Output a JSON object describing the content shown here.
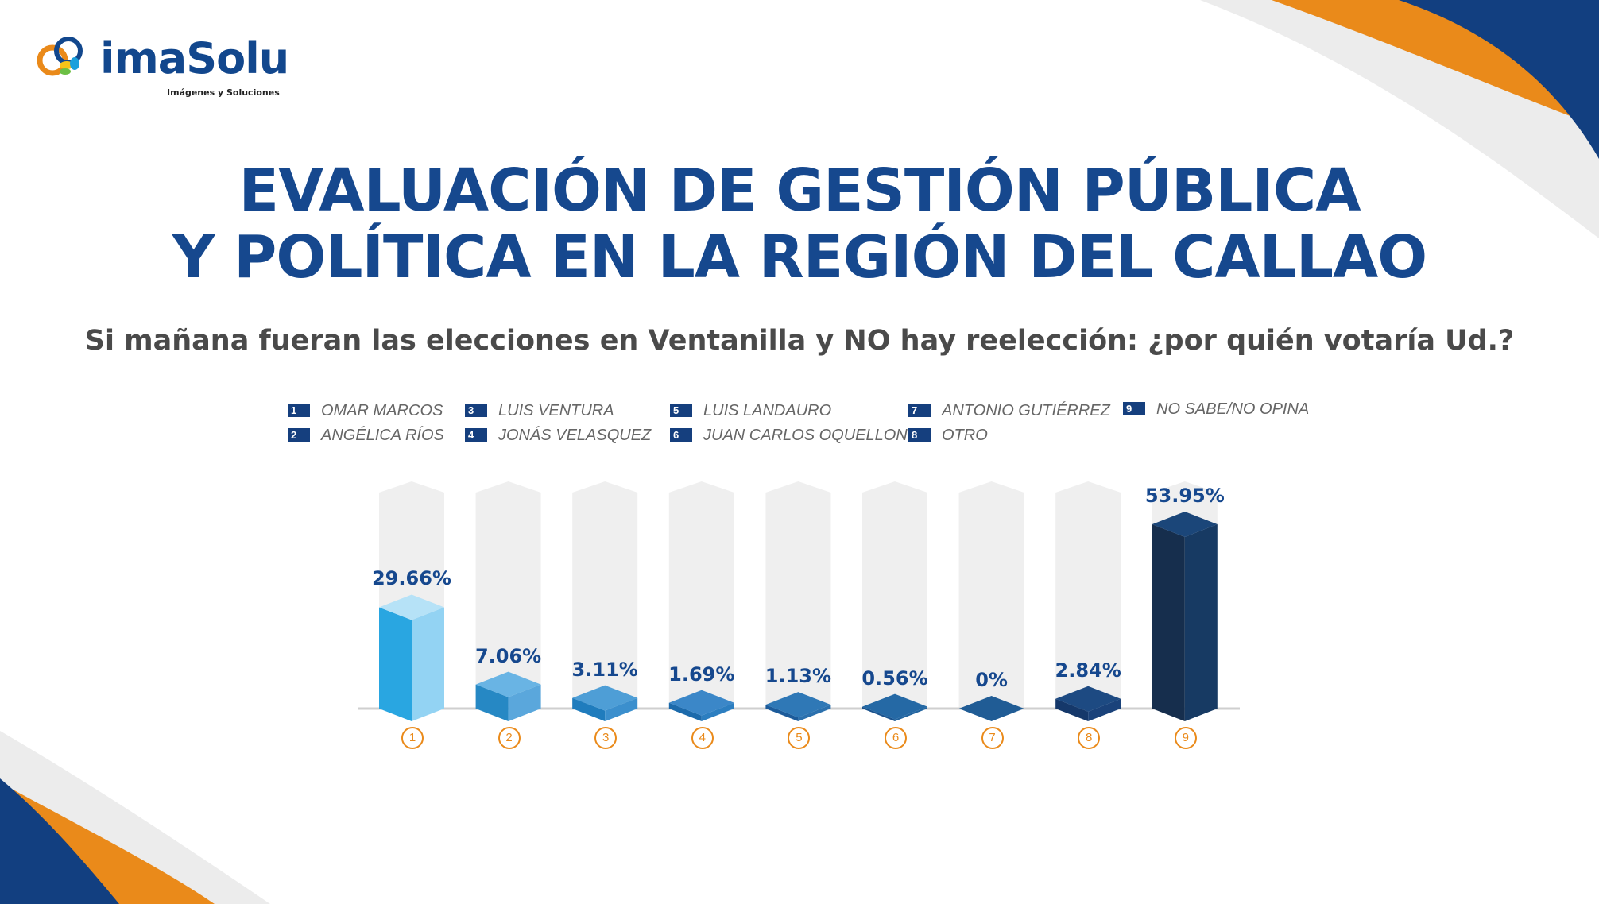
{
  "logo": {
    "wordmark": "imaSolu",
    "tagline": "Imágenes y Soluciones"
  },
  "title_line1": "EVALUACIÓN DE GESTIÓN PÚBLICA",
  "title_line2": "Y POLÍTICA EN LA REGIÓN DEL CALLAO",
  "question": "Si mañana fueran las elecciones en Ventanilla y NO hay reelección: ¿por quién votaría Ud.?",
  "legend": [
    {
      "num": "1",
      "name": "OMAR MARCOS"
    },
    {
      "num": "2",
      "name": "ANGÉLICA RÍOS"
    },
    {
      "num": "3",
      "name": "LUIS VENTURA"
    },
    {
      "num": "4",
      "name": "JONÁS VELASQUEZ"
    },
    {
      "num": "5",
      "name": "LUIS LANDAURO"
    },
    {
      "num": "6",
      "name": "JUAN CARLOS OQUELLON"
    },
    {
      "num": "7",
      "name": "ANTONIO GUTIÉRREZ"
    },
    {
      "num": "8",
      "name": "OTRO"
    },
    {
      "num": "9",
      "name": "NO SABE/NO OPINA"
    }
  ],
  "chart_data": {
    "type": "bar",
    "categories": [
      "1",
      "2",
      "3",
      "4",
      "5",
      "6",
      "7",
      "8",
      "9"
    ],
    "values": [
      29.66,
      7.06,
      3.11,
      1.69,
      1.13,
      0.56,
      0,
      2.84,
      53.95
    ],
    "labels": [
      "29.66%",
      "7.06%",
      "3.11%",
      "1.69%",
      "1.13%",
      "0.56%",
      "0%",
      "2.84%",
      "53.95%"
    ],
    "index_marks": [
      "①",
      "②",
      "③",
      "④",
      "⑤",
      "⑥",
      "⑦",
      "⑧",
      "⑨"
    ],
    "ylim": [
      0,
      60
    ],
    "grid": false,
    "colors": {
      "front": [
        "#29a6e1",
        "#2688c4",
        "#1f7cbd",
        "#1c6aab",
        "#1c5b9a",
        "#1a538e",
        "#184a82",
        "#15386a",
        "#162e4d"
      ],
      "side": [
        "#93d3f3",
        "#5aa7dc",
        "#3b8fcd",
        "#2c7ec0",
        "#2b70ad",
        "#22649f",
        "#1c5590",
        "#1a427a",
        "#173a63"
      ],
      "top": [
        "#b6e2f7",
        "#69b4e4",
        "#4e9ed6",
        "#3b87c8",
        "#2f78b6",
        "#2569a5",
        "#205c95",
        "#1d4a82",
        "#1b4679"
      ],
      "track": "#efefef",
      "baseline": "#cfcfcf"
    }
  },
  "colors": {
    "brand_blue": "#16488e",
    "orange": "#ea8a1a",
    "navy": "#123f80"
  }
}
